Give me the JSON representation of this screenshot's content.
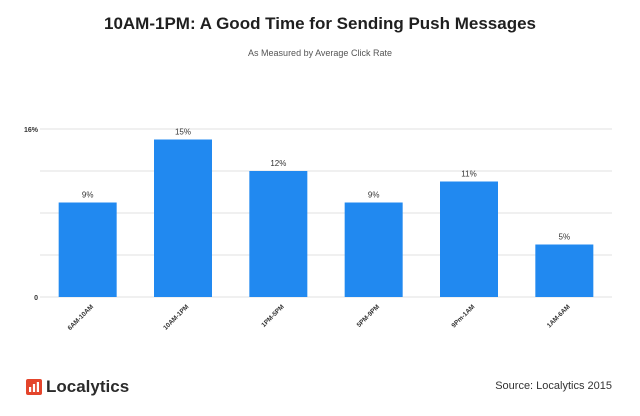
{
  "header": {
    "title": "10AM-1PM: A Good Time for Sending Push Messages",
    "subtitle": "As Measured by Average Click Rate"
  },
  "footer": {
    "brand": "Localytics",
    "source": "Source: Localytics 2015"
  },
  "colors": {
    "bar": "#2189f0",
    "grid": "#e2e2e2",
    "logo_accent": "#e4452c"
  },
  "chart_data": {
    "type": "bar",
    "title": "10AM-1PM: A Good Time for Sending Push Messages",
    "subtitle": "As Measured by Average Click Rate",
    "categories": [
      "6AM-10AM",
      "10AM-1PM",
      "1PM-5PM",
      "5PM-9PM",
      "9Pm-1AM",
      "1AM-6AM"
    ],
    "values": [
      9,
      15,
      12,
      9,
      11,
      5
    ],
    "data_labels": [
      "9%",
      "15%",
      "12%",
      "9%",
      "11%",
      "5%"
    ],
    "y_tick_labels": [
      "16%",
      "0"
    ],
    "ylim": [
      0,
      16
    ],
    "xlabel": "",
    "ylabel": "",
    "grid": true,
    "legend": "none"
  }
}
